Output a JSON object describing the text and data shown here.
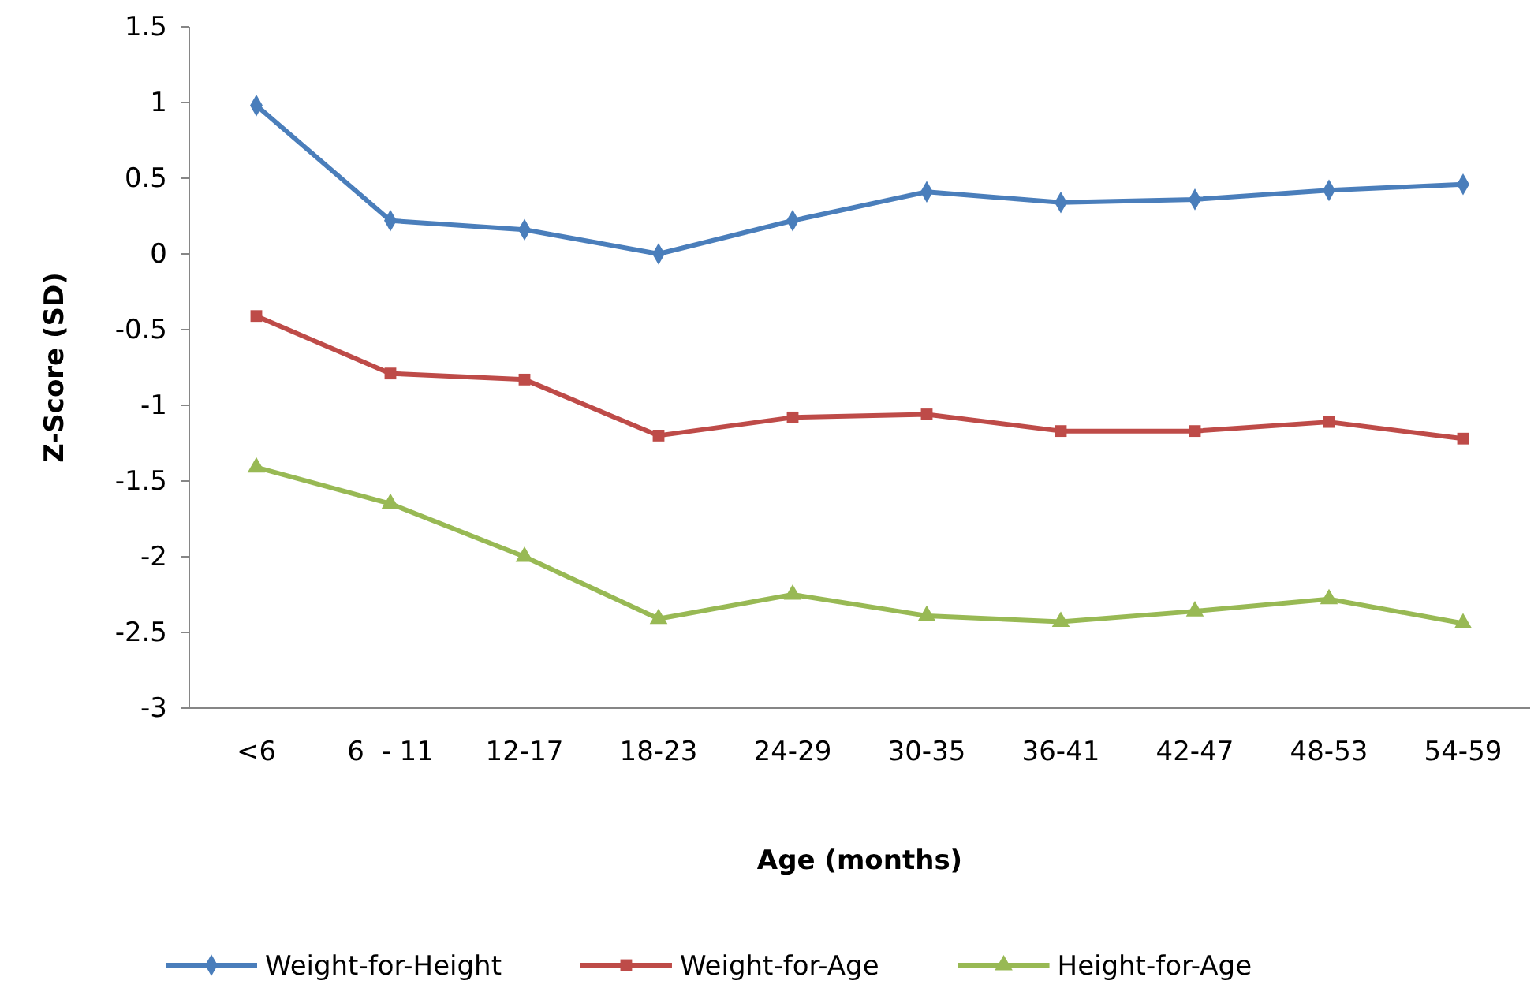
{
  "chart_data": {
    "type": "line",
    "xlabel": "Age (months)",
    "ylabel": "Z-Score (SD)",
    "categories": [
      "<6",
      "6  - 11",
      "12-17",
      "18-23",
      "24-29",
      "30-35",
      "36-41",
      "42-47",
      "48-53",
      "54-59"
    ],
    "series": [
      {
        "name": "Weight-for-Height",
        "color": "#4a7ebb",
        "marker": "diamond",
        "values": [
          0.98,
          0.22,
          0.16,
          0.0,
          0.22,
          0.41,
          0.34,
          0.36,
          0.42,
          0.46
        ]
      },
      {
        "name": "Weight-for-Age",
        "color": "#be4b48",
        "marker": "square",
        "values": [
          -0.41,
          -0.79,
          -0.83,
          -1.2,
          -1.08,
          -1.06,
          -1.17,
          -1.17,
          -1.11,
          -1.22
        ]
      },
      {
        "name": "Height-for-Age",
        "color": "#98b954",
        "marker": "triangle",
        "values": [
          -1.41,
          -1.65,
          -2.0,
          -2.41,
          -2.25,
          -2.39,
          -2.43,
          -2.36,
          -2.28,
          -2.44
        ]
      }
    ],
    "ylim": [
      -3,
      1.5
    ],
    "yticks": [
      -3,
      -2.5,
      -2,
      -1.5,
      -1,
      -0.5,
      0,
      0.5,
      1,
      1.5
    ],
    "grid": false,
    "legend": "bottom",
    "line_style": "solid"
  }
}
